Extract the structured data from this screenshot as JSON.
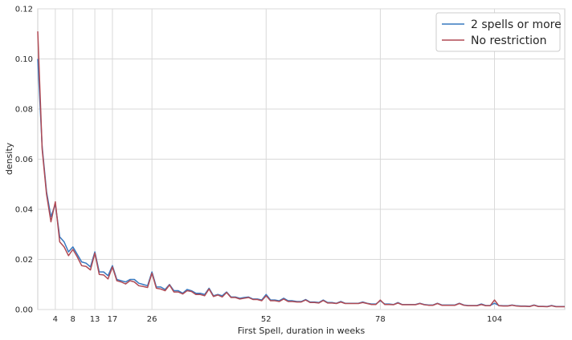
{
  "chart_data": {
    "type": "line",
    "title": "",
    "xlabel": "First Spell, duration in weeks",
    "ylabel": "density",
    "xlim": [
      0,
      120
    ],
    "ylim": [
      0,
      0.12
    ],
    "x_ticks": [
      4,
      8,
      13,
      17,
      26,
      52,
      78,
      104
    ],
    "y_ticks": [
      "0.00",
      "0.02",
      "0.04",
      "0.06",
      "0.08",
      "0.10",
      "0.12"
    ],
    "grid": true,
    "legend_position": "top-right",
    "series": [
      {
        "name": "2 spells or more",
        "color": "#3778bf",
        "points": [
          [
            0,
            0.1
          ],
          [
            1,
            0.065
          ],
          [
            2,
            0.047
          ],
          [
            3,
            0.037
          ],
          [
            4,
            0.042
          ],
          [
            5,
            0.029
          ],
          [
            6,
            0.027
          ],
          [
            7,
            0.023
          ],
          [
            8,
            0.025
          ],
          [
            9,
            0.022
          ],
          [
            10,
            0.019
          ],
          [
            11,
            0.0185
          ],
          [
            12,
            0.017
          ],
          [
            13,
            0.023
          ],
          [
            14,
            0.015
          ],
          [
            15,
            0.015
          ],
          [
            16,
            0.0135
          ],
          [
            17,
            0.0175
          ],
          [
            18,
            0.012
          ],
          [
            19,
            0.0115
          ],
          [
            20,
            0.011
          ],
          [
            21,
            0.012
          ],
          [
            22,
            0.012
          ],
          [
            23,
            0.0105
          ],
          [
            24,
            0.01
          ],
          [
            25,
            0.0095
          ],
          [
            26,
            0.015
          ],
          [
            27,
            0.009
          ],
          [
            28,
            0.009
          ],
          [
            29,
            0.008
          ],
          [
            30,
            0.01
          ],
          [
            31,
            0.0075
          ],
          [
            32,
            0.0075
          ],
          [
            33,
            0.0065
          ],
          [
            34,
            0.008
          ],
          [
            35,
            0.0075
          ],
          [
            36,
            0.0065
          ],
          [
            37,
            0.0065
          ],
          [
            38,
            0.006
          ],
          [
            39,
            0.0085
          ],
          [
            40,
            0.0055
          ],
          [
            41,
            0.006
          ],
          [
            42,
            0.0055
          ],
          [
            43,
            0.007
          ],
          [
            44,
            0.005
          ],
          [
            45,
            0.005
          ],
          [
            46,
            0.0045
          ],
          [
            47,
            0.0048
          ],
          [
            48,
            0.005
          ],
          [
            49,
            0.0042
          ],
          [
            50,
            0.0042
          ],
          [
            51,
            0.0038
          ],
          [
            52,
            0.006
          ],
          [
            53,
            0.0038
          ],
          [
            54,
            0.0038
          ],
          [
            55,
            0.0035
          ],
          [
            56,
            0.0045
          ],
          [
            57,
            0.0035
          ],
          [
            58,
            0.0035
          ],
          [
            59,
            0.0032
          ],
          [
            60,
            0.0032
          ],
          [
            61,
            0.004
          ],
          [
            62,
            0.003
          ],
          [
            63,
            0.003
          ],
          [
            64,
            0.0028
          ],
          [
            65,
            0.0038
          ],
          [
            66,
            0.0028
          ],
          [
            67,
            0.0028
          ],
          [
            68,
            0.0025
          ],
          [
            69,
            0.0032
          ],
          [
            70,
            0.0025
          ],
          [
            71,
            0.0025
          ],
          [
            72,
            0.0025
          ],
          [
            73,
            0.0025
          ],
          [
            74,
            0.003
          ],
          [
            75,
            0.0025
          ],
          [
            76,
            0.0022
          ],
          [
            77,
            0.0022
          ],
          [
            78,
            0.0035
          ],
          [
            79,
            0.0022
          ],
          [
            80,
            0.0022
          ],
          [
            81,
            0.002
          ],
          [
            82,
            0.0028
          ],
          [
            83,
            0.002
          ],
          [
            84,
            0.002
          ],
          [
            85,
            0.002
          ],
          [
            86,
            0.002
          ],
          [
            87,
            0.0025
          ],
          [
            88,
            0.002
          ],
          [
            89,
            0.0018
          ],
          [
            90,
            0.0018
          ],
          [
            91,
            0.0025
          ],
          [
            92,
            0.0018
          ],
          [
            93,
            0.0018
          ],
          [
            94,
            0.0018
          ],
          [
            95,
            0.0018
          ],
          [
            96,
            0.0025
          ],
          [
            97,
            0.0018
          ],
          [
            98,
            0.0016
          ],
          [
            99,
            0.0016
          ],
          [
            100,
            0.0016
          ],
          [
            101,
            0.0022
          ],
          [
            102,
            0.0016
          ],
          [
            103,
            0.0016
          ],
          [
            104,
            0.0025
          ],
          [
            105,
            0.0016
          ],
          [
            106,
            0.0015
          ],
          [
            107,
            0.0015
          ],
          [
            108,
            0.0018
          ],
          [
            109,
            0.0015
          ],
          [
            110,
            0.0014
          ],
          [
            111,
            0.0014
          ],
          [
            112,
            0.0013
          ],
          [
            113,
            0.0018
          ],
          [
            114,
            0.0013
          ],
          [
            115,
            0.0013
          ],
          [
            116,
            0.0012
          ],
          [
            117,
            0.0016
          ],
          [
            118,
            0.0012
          ],
          [
            119,
            0.0012
          ],
          [
            120,
            0.0012
          ]
        ]
      },
      {
        "name": "No restriction",
        "color": "#b04a54",
        "points": [
          [
            0,
            0.111
          ],
          [
            1,
            0.064
          ],
          [
            2,
            0.046
          ],
          [
            3,
            0.035
          ],
          [
            4,
            0.043
          ],
          [
            5,
            0.027
          ],
          [
            6,
            0.025
          ],
          [
            7,
            0.0215
          ],
          [
            8,
            0.024
          ],
          [
            9,
            0.021
          ],
          [
            10,
            0.0175
          ],
          [
            11,
            0.0172
          ],
          [
            12,
            0.0158
          ],
          [
            13,
            0.0225
          ],
          [
            14,
            0.014
          ],
          [
            15,
            0.0138
          ],
          [
            16,
            0.0122
          ],
          [
            17,
            0.017
          ],
          [
            18,
            0.0115
          ],
          [
            19,
            0.011
          ],
          [
            20,
            0.0102
          ],
          [
            21,
            0.0115
          ],
          [
            22,
            0.011
          ],
          [
            23,
            0.0095
          ],
          [
            24,
            0.0092
          ],
          [
            25,
            0.0088
          ],
          [
            26,
            0.0145
          ],
          [
            27,
            0.0085
          ],
          [
            28,
            0.0082
          ],
          [
            29,
            0.0075
          ],
          [
            30,
            0.0098
          ],
          [
            31,
            0.007
          ],
          [
            32,
            0.007
          ],
          [
            33,
            0.0062
          ],
          [
            34,
            0.0075
          ],
          [
            35,
            0.0072
          ],
          [
            36,
            0.006
          ],
          [
            37,
            0.006
          ],
          [
            38,
            0.0055
          ],
          [
            39,
            0.0082
          ],
          [
            40,
            0.0052
          ],
          [
            41,
            0.0058
          ],
          [
            42,
            0.005
          ],
          [
            43,
            0.0068
          ],
          [
            44,
            0.0048
          ],
          [
            45,
            0.0048
          ],
          [
            46,
            0.0042
          ],
          [
            47,
            0.0045
          ],
          [
            48,
            0.0048
          ],
          [
            49,
            0.004
          ],
          [
            50,
            0.004
          ],
          [
            51,
            0.0035
          ],
          [
            52,
            0.0055
          ],
          [
            53,
            0.0035
          ],
          [
            54,
            0.0035
          ],
          [
            55,
            0.0032
          ],
          [
            56,
            0.0042
          ],
          [
            57,
            0.0032
          ],
          [
            58,
            0.0032
          ],
          [
            59,
            0.003
          ],
          [
            60,
            0.003
          ],
          [
            61,
            0.0038
          ],
          [
            62,
            0.0028
          ],
          [
            63,
            0.0028
          ],
          [
            64,
            0.0026
          ],
          [
            65,
            0.0036
          ],
          [
            66,
            0.0026
          ],
          [
            67,
            0.0026
          ],
          [
            68,
            0.0024
          ],
          [
            69,
            0.003
          ],
          [
            70,
            0.0024
          ],
          [
            71,
            0.0024
          ],
          [
            72,
            0.0024
          ],
          [
            73,
            0.0024
          ],
          [
            74,
            0.0028
          ],
          [
            75,
            0.0024
          ],
          [
            76,
            0.002
          ],
          [
            77,
            0.002
          ],
          [
            78,
            0.0038
          ],
          [
            79,
            0.002
          ],
          [
            80,
            0.002
          ],
          [
            81,
            0.0019
          ],
          [
            82,
            0.0026
          ],
          [
            83,
            0.0019
          ],
          [
            84,
            0.0019
          ],
          [
            85,
            0.0019
          ],
          [
            86,
            0.0019
          ],
          [
            87,
            0.0024
          ],
          [
            88,
            0.0019
          ],
          [
            89,
            0.0017
          ],
          [
            90,
            0.0017
          ],
          [
            91,
            0.0024
          ],
          [
            92,
            0.0017
          ],
          [
            93,
            0.0017
          ],
          [
            94,
            0.0017
          ],
          [
            95,
            0.0017
          ],
          [
            96,
            0.0024
          ],
          [
            97,
            0.0017
          ],
          [
            98,
            0.0015
          ],
          [
            99,
            0.0015
          ],
          [
            100,
            0.0015
          ],
          [
            101,
            0.002
          ],
          [
            102,
            0.0015
          ],
          [
            103,
            0.0015
          ],
          [
            104,
            0.0038
          ],
          [
            105,
            0.0015
          ],
          [
            106,
            0.0014
          ],
          [
            107,
            0.0014
          ],
          [
            108,
            0.0017
          ],
          [
            109,
            0.0014
          ],
          [
            110,
            0.0013
          ],
          [
            111,
            0.0013
          ],
          [
            112,
            0.0012
          ],
          [
            113,
            0.0017
          ],
          [
            114,
            0.0012
          ],
          [
            115,
            0.0012
          ],
          [
            116,
            0.0011
          ],
          [
            117,
            0.0015
          ],
          [
            118,
            0.0011
          ],
          [
            119,
            0.0011
          ],
          [
            120,
            0.0011
          ]
        ]
      }
    ]
  }
}
